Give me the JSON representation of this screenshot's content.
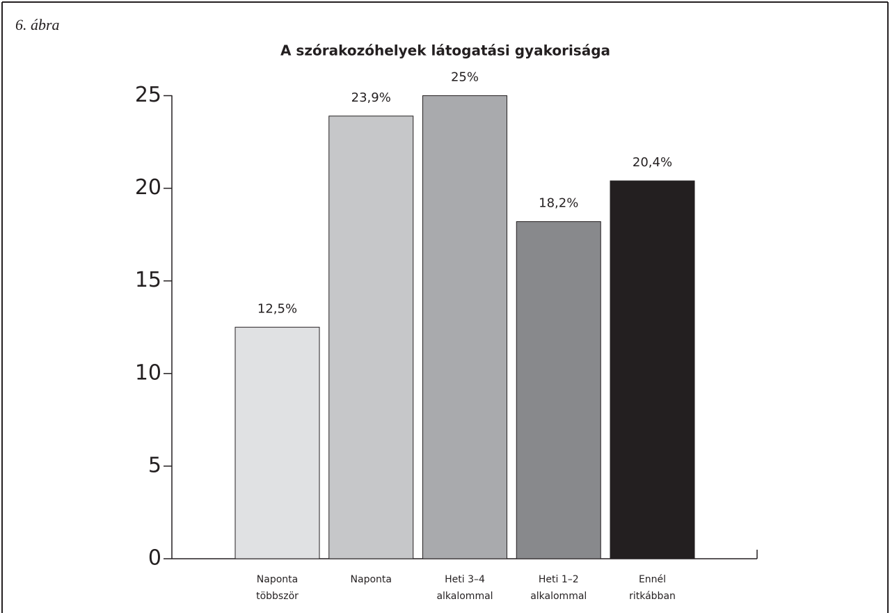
{
  "figure_label": "6. ábra",
  "chart_data": {
    "type": "bar",
    "title": "A szórakozóhelyek látogatási gyakorisága",
    "categories": [
      "Naponta\ntöbbször",
      "Naponta",
      "Heti 3–4\nalkalommal",
      "Heti 1–2\nalkalommal",
      "Ennél\nritkábban"
    ],
    "values": [
      12.5,
      23.9,
      25,
      18.2,
      20.4
    ],
    "value_labels": [
      "12,5%",
      "23,9%",
      "25%",
      "18,2%",
      "20,4%"
    ],
    "colors": [
      "#e0e1e3",
      "#c6c7c9",
      "#a9aaad",
      "#88898c",
      "#231f20"
    ],
    "ylim": [
      0,
      25
    ],
    "yticks": [
      0,
      5,
      10,
      15,
      20,
      25
    ]
  }
}
